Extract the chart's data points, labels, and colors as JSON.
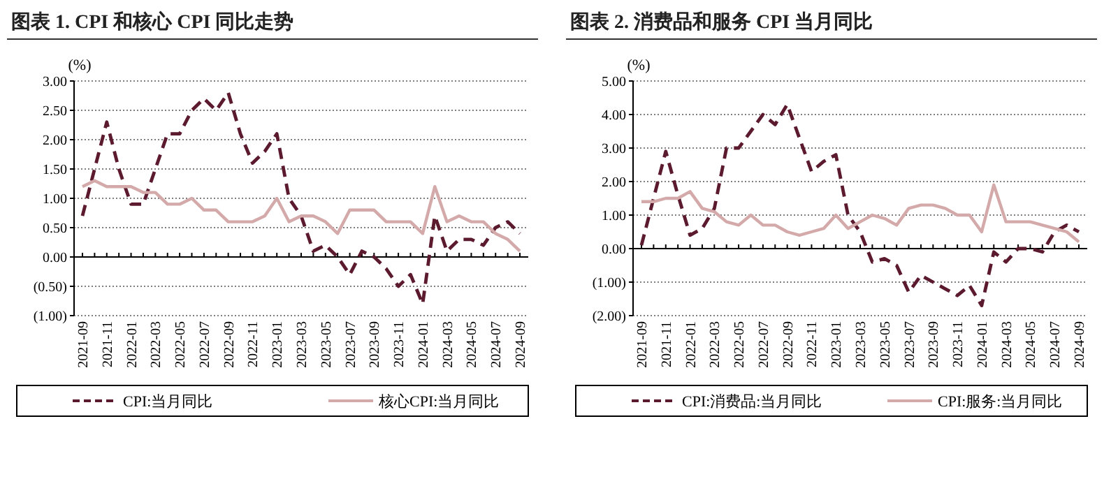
{
  "chart_data": [
    {
      "type": "line",
      "title": "图表 1. CPI 和核心 CPI 同比走势",
      "ylabel": "(%)",
      "categories": [
        "2021-09",
        null,
        "2021-11",
        null,
        "2022-01",
        null,
        "2022-03",
        null,
        "2022-05",
        null,
        "2022-07",
        null,
        "2022-09",
        null,
        "2022-11",
        null,
        "2023-01",
        null,
        "2023-03",
        null,
        "2023-05",
        null,
        "2023-07",
        null,
        "2023-09",
        null,
        "2023-11",
        null,
        "2024-01",
        null,
        "2024-03",
        null,
        "2024-05",
        null,
        "2024-07",
        null,
        "2024-09"
      ],
      "series": [
        {
          "name": "CPI:当月同比",
          "color": "#5c1a2e",
          "line_style": "dashed",
          "values": [
            0.7,
            1.5,
            2.3,
            1.5,
            0.9,
            0.9,
            1.5,
            2.1,
            2.1,
            2.5,
            2.7,
            2.5,
            2.8,
            2.1,
            1.6,
            1.8,
            2.1,
            1.0,
            0.7,
            0.1,
            0.2,
            0.0,
            -0.3,
            0.1,
            0.0,
            -0.2,
            -0.5,
            -0.3,
            -0.8,
            0.7,
            0.1,
            0.3,
            0.3,
            0.2,
            0.5,
            0.6,
            0.4
          ]
        },
        {
          "name": "核心CPI:当月同比",
          "color": "#d4a9a9",
          "line_style": "solid",
          "values": [
            1.2,
            1.3,
            1.2,
            1.2,
            1.2,
            1.1,
            1.1,
            0.9,
            0.9,
            1.0,
            0.8,
            0.8,
            0.6,
            0.6,
            0.6,
            0.7,
            1.0,
            0.6,
            0.7,
            0.7,
            0.6,
            0.4,
            0.8,
            0.8,
            0.8,
            0.6,
            0.6,
            0.6,
            0.4,
            1.2,
            0.6,
            0.7,
            0.6,
            0.6,
            0.4,
            0.3,
            0.1
          ]
        }
      ],
      "ylim": [
        -1.0,
        3.0
      ],
      "yticks": [
        {
          "value": -1.0,
          "label": "(1.00)"
        },
        {
          "value": -0.5,
          "label": "(0.50)"
        },
        {
          "value": 0,
          "label": "0.00"
        },
        {
          "value": 0.5,
          "label": "0.50"
        },
        {
          "value": 1.0,
          "label": "1.00"
        },
        {
          "value": 1.5,
          "label": "1.50"
        },
        {
          "value": 2.0,
          "label": "2.00"
        },
        {
          "value": 2.5,
          "label": "2.50"
        },
        {
          "value": 3.0,
          "label": "3.00"
        }
      ],
      "grid": "y",
      "legend": "bottom"
    },
    {
      "type": "line",
      "title": "图表 2. 消费品和服务 CPI 当月同比",
      "ylabel": "(%)",
      "categories": [
        "2021-09",
        null,
        "2021-11",
        null,
        "2022-01",
        null,
        "2022-03",
        null,
        "2022-05",
        null,
        "2022-07",
        null,
        "2022-09",
        null,
        "2022-11",
        null,
        "2023-01",
        null,
        "2023-03",
        null,
        "2023-05",
        null,
        "2023-07",
        null,
        "2023-09",
        null,
        "2023-11",
        null,
        "2024-01",
        null,
        "2024-03",
        null,
        "2024-05",
        null,
        "2024-07",
        null,
        "2024-09"
      ],
      "series": [
        {
          "name": "CPI:消费品:当月同比",
          "color": "#5c1a2e",
          "line_style": "dashed",
          "values": [
            0.1,
            1.5,
            2.9,
            1.6,
            0.4,
            0.6,
            1.2,
            3.0,
            3.0,
            3.5,
            4.0,
            3.7,
            4.3,
            3.3,
            2.3,
            2.6,
            2.8,
            1.0,
            0.5,
            -0.4,
            -0.3,
            -0.5,
            -1.3,
            -0.8,
            -1.0,
            -1.2,
            -1.4,
            -1.1,
            -1.7,
            -0.1,
            -0.4,
            0.0,
            0.0,
            -0.1,
            0.5,
            0.7,
            0.5
          ]
        },
        {
          "name": "CPI:服务:当月同比",
          "color": "#d4a9a9",
          "line_style": "solid",
          "values": [
            1.4,
            1.4,
            1.5,
            1.5,
            1.7,
            1.2,
            1.1,
            0.8,
            0.7,
            1.0,
            0.7,
            0.7,
            0.5,
            0.4,
            0.5,
            0.6,
            1.0,
            0.6,
            0.8,
            1.0,
            0.9,
            0.7,
            1.2,
            1.3,
            1.3,
            1.2,
            1.0,
            1.0,
            0.5,
            1.9,
            0.8,
            0.8,
            0.8,
            0.7,
            0.6,
            0.5,
            0.2
          ]
        }
      ],
      "ylim": [
        -2.0,
        5.0
      ],
      "yticks": [
        {
          "value": -2.0,
          "label": "(2.00)"
        },
        {
          "value": -1.0,
          "label": "(1.00)"
        },
        {
          "value": 0,
          "label": "0.00"
        },
        {
          "value": 1.0,
          "label": "1.00"
        },
        {
          "value": 2.0,
          "label": "2.00"
        },
        {
          "value": 3.0,
          "label": "3.00"
        },
        {
          "value": 4.0,
          "label": "4.00"
        },
        {
          "value": 5.0,
          "label": "5.00"
        }
      ],
      "grid": "y",
      "legend": "bottom"
    }
  ]
}
